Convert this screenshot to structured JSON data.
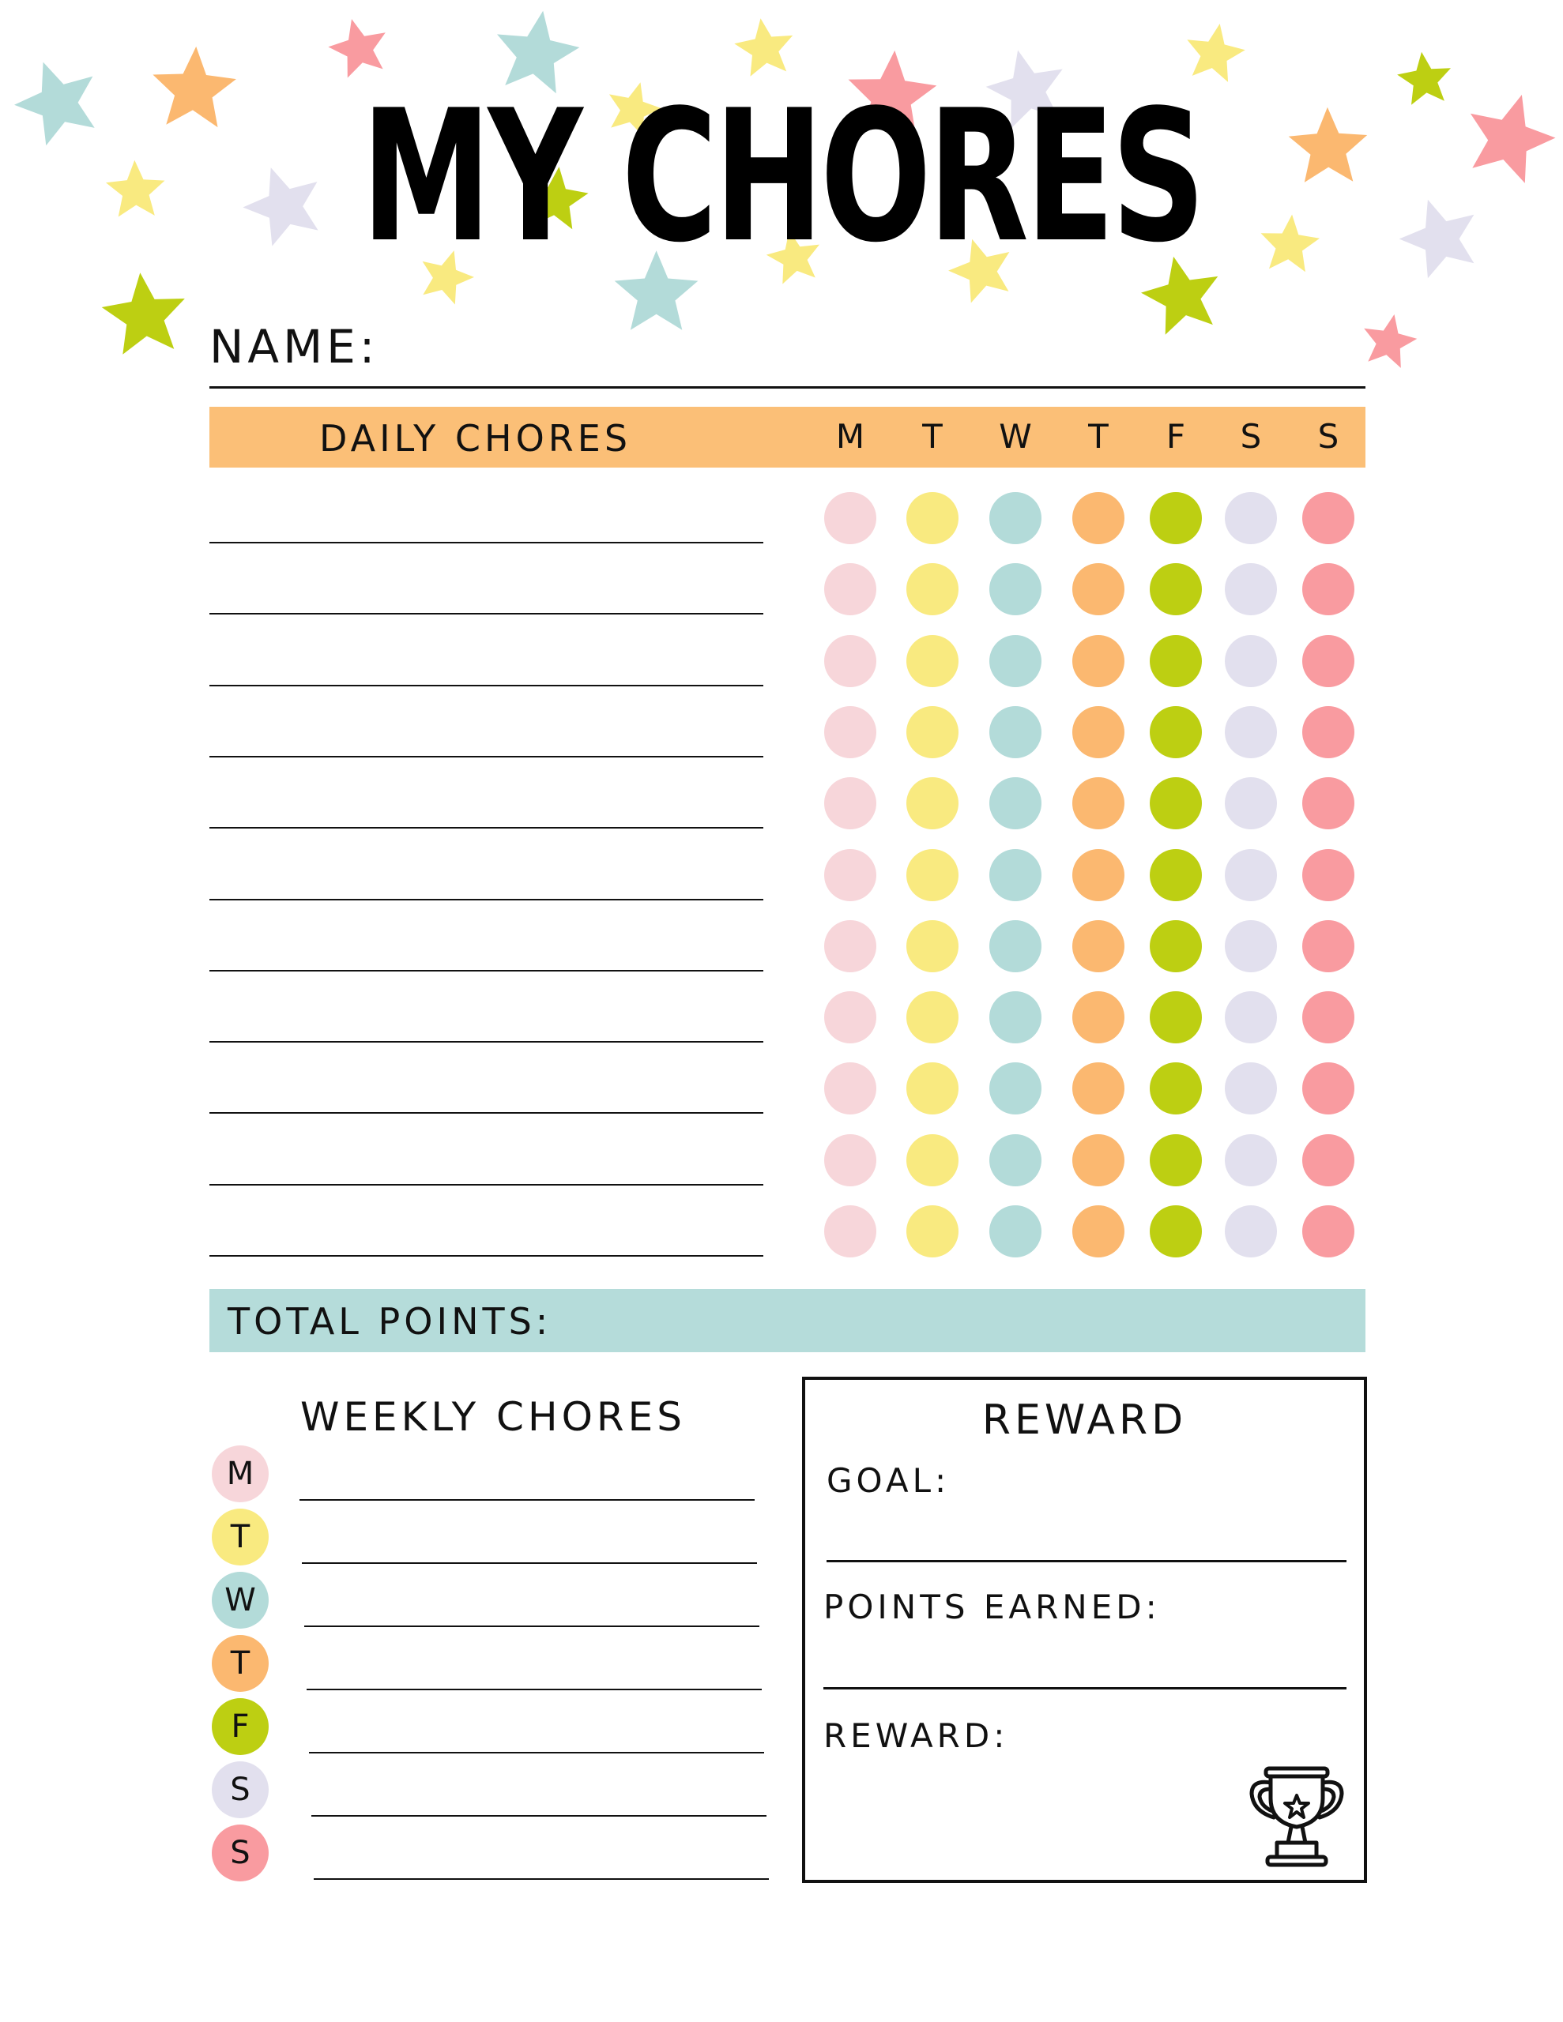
{
  "title": "MY CHORES",
  "name_label": "NAME:",
  "daily": {
    "header": "DAILY CHORES",
    "days": [
      "M",
      "T",
      "W",
      "T",
      "F",
      "S",
      "S"
    ],
    "row_count": 11
  },
  "total_points_label": "TOTAL POINTS:",
  "weekly": {
    "header": "WEEKLY CHORES",
    "days": [
      "M",
      "T",
      "W",
      "T",
      "F",
      "S",
      "S"
    ]
  },
  "reward_box": {
    "title": "REWARD",
    "goal_label": "GOAL:",
    "points_label": "POINTS EARNED:",
    "reward_label": "REWARD:",
    "icon": "trophy-icon"
  },
  "colors": {
    "day_colors": [
      "#F7D6DA",
      "#F9EA80",
      "#B3DBD9",
      "#FBB870",
      "#BDCF12",
      "#E2E0EE",
      "#F99BA0"
    ],
    "header_bar": "#FBBF77",
    "total_bar": "#B5DCDA"
  }
}
